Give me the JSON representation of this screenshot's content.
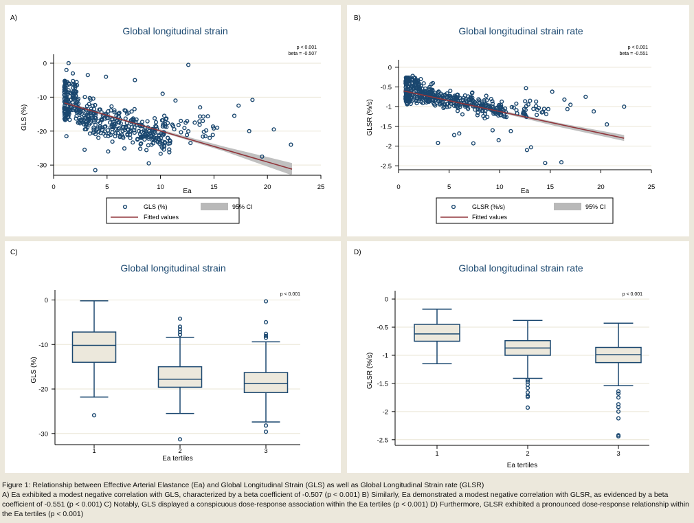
{
  "chart_data": [
    {
      "panel": "A)",
      "type": "scatter",
      "title": "Global longitudinal strain",
      "xlabel": "Ea",
      "ylabel": "GLS (%)",
      "xlim": [
        0,
        25
      ],
      "ylim": [
        -33,
        1
      ],
      "xticks": [
        "0",
        "5",
        "10",
        "15",
        "20",
        "25"
      ],
      "yticks": [
        "0",
        "-10",
        "-20",
        "-30"
      ],
      "annotation": [
        "p < 0.001",
        "beta = -0.507"
      ],
      "legend": [
        "GLS (%)",
        "95% CI",
        "Fitted values"
      ],
      "fit": {
        "x": [
          1,
          22.3
        ],
        "y": [
          -11.7,
          -31.2
        ]
      },
      "ci": {
        "x": [
          1,
          6,
          11,
          16,
          22.3
        ],
        "lower": [
          -12.2,
          -16.6,
          -21.2,
          -26.0,
          -33.0
        ],
        "upper": [
          -11.2,
          -16.0,
          -20.4,
          -24.6,
          -29.4
        ]
      },
      "points_overflow": [
        {
          "x": 1.4,
          "y": 0
        },
        {
          "x": 12.6,
          "y": -0.5
        },
        {
          "x": 1.2,
          "y": -2
        },
        {
          "x": 1.8,
          "y": -3
        },
        {
          "x": 3.2,
          "y": -3.5
        },
        {
          "x": 4.9,
          "y": -4
        },
        {
          "x": 7.6,
          "y": -5
        },
        {
          "x": 10.2,
          "y": -9
        },
        {
          "x": 11.4,
          "y": -11
        },
        {
          "x": 13.7,
          "y": -13
        },
        {
          "x": 17.3,
          "y": -12.5
        },
        {
          "x": 18.6,
          "y": -10.8
        },
        {
          "x": 16.9,
          "y": -15.5
        },
        {
          "x": 15.3,
          "y": -19
        },
        {
          "x": 18.3,
          "y": -20
        },
        {
          "x": 20.6,
          "y": -19.5
        },
        {
          "x": 22.2,
          "y": -24
        },
        {
          "x": 19.5,
          "y": -27.5
        },
        {
          "x": 3.9,
          "y": -31.5
        },
        {
          "x": 8.9,
          "y": -29.5
        },
        {
          "x": 12.8,
          "y": -23.5
        },
        {
          "x": 14.2,
          "y": -21.5
        },
        {
          "x": 11.9,
          "y": -17
        },
        {
          "x": 13.2,
          "y": -17.5
        },
        {
          "x": 14.6,
          "y": -22
        },
        {
          "x": 1.2,
          "y": -21.5
        },
        {
          "x": 2.9,
          "y": -25.5
        },
        {
          "x": 5.1,
          "y": -26
        }
      ]
    },
    {
      "panel": "B)",
      "type": "scatter",
      "title": "Global longitudinal strain rate",
      "xlabel": "Ea",
      "ylabel": "GLSR (%/s)",
      "xlim": [
        0,
        25
      ],
      "ylim": [
        -2.6,
        0.05
      ],
      "xticks": [
        "0",
        "5",
        "10",
        "15",
        "20",
        "25"
      ],
      "yticks": [
        "0",
        "-0.5",
        "-1",
        "-1.5",
        "-2",
        "-2.5"
      ],
      "annotation": [
        "p < 0.001",
        "beta = -0.551"
      ],
      "legend": [
        "GLSR (%/s)",
        "95% CI",
        "Fitted values"
      ],
      "fit": {
        "x": [
          0.5,
          22.3
        ],
        "y": [
          -0.6,
          -1.8
        ]
      },
      "ci": {
        "x": [
          0.5,
          6,
          11,
          16,
          22.3
        ],
        "lower": [
          -0.64,
          -0.93,
          -1.21,
          -1.52,
          -1.87
        ],
        "upper": [
          -0.56,
          -0.88,
          -1.14,
          -1.42,
          -1.72
        ]
      },
      "points_overflow": [
        {
          "x": 0.9,
          "y": -0.28
        },
        {
          "x": 1.4,
          "y": -0.22
        },
        {
          "x": 2.2,
          "y": -0.3
        },
        {
          "x": 3.4,
          "y": -0.4
        },
        {
          "x": 12.6,
          "y": -0.53
        },
        {
          "x": 15.2,
          "y": -0.62
        },
        {
          "x": 18.5,
          "y": -0.75
        },
        {
          "x": 16.4,
          "y": -0.82
        },
        {
          "x": 17.0,
          "y": -0.95
        },
        {
          "x": 16.7,
          "y": -1.06
        },
        {
          "x": 19.3,
          "y": -1.12
        },
        {
          "x": 22.3,
          "y": -1.0
        },
        {
          "x": 20.6,
          "y": -1.45
        },
        {
          "x": 13.0,
          "y": -0.85
        },
        {
          "x": 13.6,
          "y": -0.87
        },
        {
          "x": 14.8,
          "y": -1.06
        },
        {
          "x": 12.7,
          "y": -2.1
        },
        {
          "x": 13.1,
          "y": -2.03
        },
        {
          "x": 14.5,
          "y": -2.43
        },
        {
          "x": 16.1,
          "y": -2.41
        },
        {
          "x": 7.4,
          "y": -1.93
        },
        {
          "x": 3.9,
          "y": -1.92
        },
        {
          "x": 9.9,
          "y": -1.85
        },
        {
          "x": 11.1,
          "y": -1.62
        },
        {
          "x": 5.5,
          "y": -1.72
        },
        {
          "x": 6.0,
          "y": -1.68
        },
        {
          "x": 9.3,
          "y": -1.6
        },
        {
          "x": 12.4,
          "y": -1.15
        }
      ]
    },
    {
      "panel": "C)",
      "type": "box",
      "title": "Global longitudinal strain",
      "xlabel": "Ea tertiles",
      "ylabel": "GLS (%)",
      "ylim": [
        -32.5,
        1
      ],
      "yticks": [
        "0",
        "-10",
        "-20",
        "-30"
      ],
      "annotation": "p < 0.001",
      "categories": [
        "1",
        "2",
        "3"
      ],
      "boxes": [
        {
          "whisker_low": -21.8,
          "q1": -14.0,
          "median": -10.2,
          "q3": -7.2,
          "whisker_high": -0.2,
          "outliers": [
            -25.9
          ]
        },
        {
          "whisker_low": -25.5,
          "q1": -19.6,
          "median": -17.8,
          "q3": -15.0,
          "whisker_high": -8.4,
          "outliers": [
            -4.2,
            -6.0,
            -6.6,
            -7.2,
            -7.8,
            -31.3
          ]
        },
        {
          "whisker_low": -27.4,
          "q1": -20.8,
          "median": -18.8,
          "q3": -16.3,
          "whisker_high": -9.4,
          "outliers": [
            -0.3,
            -5.0,
            -7.6,
            -8.1,
            -8.5,
            -28.2,
            -29.6
          ]
        }
      ]
    },
    {
      "panel": "D)",
      "type": "box",
      "title": "Global longitudinal strain rate",
      "xlabel": "Ea tertiles",
      "ylabel": "GLSR (%/s)",
      "ylim": [
        -2.6,
        0.05
      ],
      "yticks": [
        "0",
        "-0.5",
        "-1",
        "-1.5",
        "-2",
        "-2.5"
      ],
      "annotation": "p < 0.001",
      "categories": [
        "1",
        "2",
        "3"
      ],
      "boxes": [
        {
          "whisker_low": -1.15,
          "q1": -0.75,
          "median": -0.62,
          "q3": -0.45,
          "whisker_high": -0.18,
          "outliers": []
        },
        {
          "whisker_low": -1.41,
          "q1": -1.0,
          "median": -0.87,
          "q3": -0.74,
          "whisker_high": -0.38,
          "outliers": [
            -1.44,
            -1.47,
            -1.52,
            -1.58,
            -1.66,
            -1.72,
            -1.74,
            -1.93
          ]
        },
        {
          "whisker_low": -1.54,
          "q1": -1.13,
          "median": -0.99,
          "q3": -0.86,
          "whisker_high": -0.43,
          "outliers": [
            -1.64,
            -1.68,
            -1.75,
            -1.87,
            -1.92,
            -2.0,
            -2.12,
            -2.42,
            -2.44
          ]
        }
      ]
    }
  ],
  "colors": {
    "marker": "#1a476f",
    "fit": "#90353b",
    "ci": "#b9b9b9",
    "box_fill": "#ece8dc",
    "grid": "#eae5d5"
  },
  "caption": {
    "line1": "Figure 1: Relationship between Effective Arterial Elastance (Ea) and Global Longitudinal Strain (GLS) as well as Global Longitudinal Strain rate (GLSR)",
    "line2": "A) Ea exhibited a modest negative correlation with GLS, characterized by a beta coefficient of -0.507 (p < 0.001) B) Similarly, Ea demonstrated a modest negative correlation with GLSR, as evidenced by a beta coefficient of -0.551 (p < 0.001) C) Notably, GLS displayed a conspicuous dose-response association within the Ea tertiles (p < 0.001) D) Furthermore, GLSR exhibited a pronounced dose-response relationship within the Ea tertiles (p < 0.001)"
  }
}
